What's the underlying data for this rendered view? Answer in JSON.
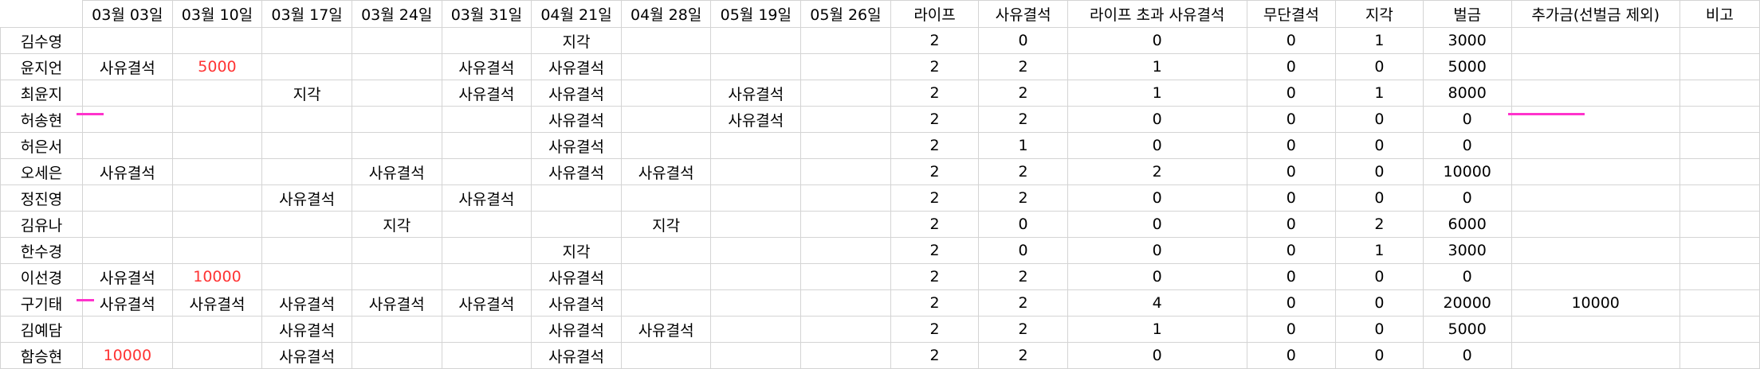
{
  "columns": [
    "",
    "03월 03일",
    "03월 10일",
    "03월 17일",
    "03월 24일",
    "03월 31일",
    "04월 21일",
    "04월 28일",
    "05월 19일",
    "05월 26일",
    "라이프",
    "사유결석",
    "라이프 초과 사유결석",
    "무단결석",
    "지각",
    "벌금",
    "추가금(선벌금 제외)",
    "비고"
  ],
  "rows": [
    [
      "김수영",
      "",
      "",
      "",
      "",
      "",
      "지각",
      "",
      "",
      "",
      "2",
      "0",
      "0",
      "0",
      "1",
      "3000",
      "",
      ""
    ],
    [
      "윤지언",
      "사유결석",
      "5000",
      "",
      "",
      "사유결석",
      "사유결석",
      "",
      "",
      "",
      "2",
      "2",
      "1",
      "0",
      "0",
      "5000",
      "",
      ""
    ],
    [
      "최윤지",
      "",
      "",
      "지각",
      "",
      "사유결석",
      "사유결석",
      "",
      "사유결석",
      "",
      "2",
      "2",
      "1",
      "0",
      "1",
      "8000",
      "",
      ""
    ],
    [
      "허송현",
      "",
      "",
      "",
      "",
      "",
      "사유결석",
      "",
      "사유결석",
      "",
      "2",
      "2",
      "0",
      "0",
      "0",
      "0",
      "",
      ""
    ],
    [
      "허은서",
      "",
      "",
      "",
      "",
      "",
      "사유결석",
      "",
      "",
      "",
      "2",
      "1",
      "0",
      "0",
      "0",
      "0",
      "",
      ""
    ],
    [
      "오세은",
      "사유결석",
      "",
      "",
      "사유결석",
      "",
      "사유결석",
      "사유결석",
      "",
      "",
      "2",
      "2",
      "2",
      "0",
      "0",
      "10000",
      "",
      ""
    ],
    [
      "정진영",
      "",
      "",
      "사유결석",
      "",
      "사유결석",
      "",
      "",
      "",
      "",
      "2",
      "2",
      "0",
      "0",
      "0",
      "0",
      "",
      ""
    ],
    [
      "김유나",
      "",
      "",
      "",
      "지각",
      "",
      "",
      "지각",
      "",
      "",
      "2",
      "0",
      "0",
      "0",
      "2",
      "6000",
      "",
      ""
    ],
    [
      "한수경",
      "",
      "",
      "",
      "",
      "",
      "지각",
      "",
      "",
      "",
      "2",
      "0",
      "0",
      "0",
      "1",
      "3000",
      "",
      ""
    ],
    [
      "이선경",
      "사유결석",
      "10000",
      "",
      "",
      "",
      "사유결석",
      "",
      "",
      "",
      "2",
      "2",
      "0",
      "0",
      "0",
      "0",
      "",
      ""
    ],
    [
      "구기태",
      "사유결석",
      "사유결석",
      "사유결석",
      "사유결석",
      "사유결석",
      "사유결석",
      "",
      "",
      "",
      "2",
      "2",
      "4",
      "0",
      "0",
      "20000",
      "10000",
      ""
    ],
    [
      "김예담",
      "",
      "",
      "사유결석",
      "",
      "",
      "사유결석",
      "사유결석",
      "",
      "",
      "2",
      "2",
      "1",
      "0",
      "0",
      "5000",
      "",
      ""
    ],
    [
      "함승현",
      "10000",
      "",
      "사유결석",
      "",
      "",
      "사유결석",
      "",
      "",
      "",
      "2",
      "2",
      "0",
      "0",
      "0",
      "0",
      "",
      ""
    ]
  ],
  "red_cells": [
    [
      1,
      2
    ],
    [
      9,
      2
    ],
    [
      12,
      1
    ]
  ],
  "colors": {
    "grid_line": "#d4d4d4",
    "highlight_text": "#ff3333",
    "pen_mark": "#ff33cc"
  }
}
